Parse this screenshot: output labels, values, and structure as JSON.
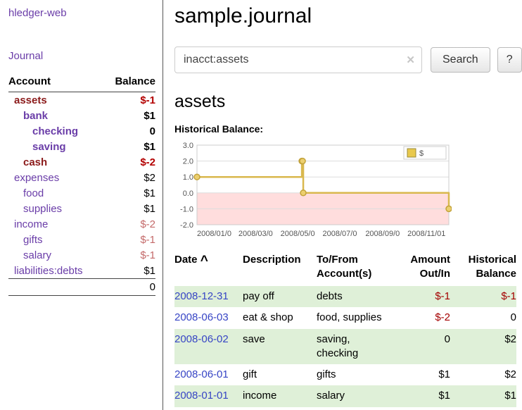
{
  "app": {
    "title": "hledger-web"
  },
  "sidebar": {
    "journal_label": "Journal",
    "accounts": {
      "header_account": "Account",
      "header_balance": "Balance",
      "rows": [
        {
          "name": "assets",
          "balance": "$-1"
        },
        {
          "name": "bank",
          "balance": "$1"
        },
        {
          "name": "checking",
          "balance": "0"
        },
        {
          "name": "saving",
          "balance": "$1"
        },
        {
          "name": "cash",
          "balance": "$-2"
        },
        {
          "name": "expenses",
          "balance": "$2"
        },
        {
          "name": "food",
          "balance": "$1"
        },
        {
          "name": "supplies",
          "balance": "$1"
        },
        {
          "name": "income",
          "balance": "$-2"
        },
        {
          "name": "gifts",
          "balance": "$-1"
        },
        {
          "name": "salary",
          "balance": "$-1"
        },
        {
          "name": "liabilities:debts",
          "balance": "$1"
        }
      ],
      "total": "0"
    }
  },
  "main": {
    "title": "sample.journal",
    "search": {
      "value": "inacct:assets",
      "clear_icon": "✕",
      "button_label": "Search",
      "help_label": "?"
    },
    "account_heading": "assets"
  },
  "chart_data": {
    "type": "line",
    "step": true,
    "title": "Historical Balance:",
    "series": [
      {
        "name": "$",
        "points": [
          [
            "2008-01-01",
            1
          ],
          [
            "2008-06-01",
            2
          ],
          [
            "2008-06-02",
            2
          ],
          [
            "2008-06-03",
            0
          ],
          [
            "2008-12-31",
            -1
          ]
        ]
      }
    ],
    "x_range": [
      "2008-01-01",
      "2008-12-31"
    ],
    "ylim": [
      -2,
      3
    ],
    "y_ticks": [
      "3.0",
      "2.0",
      "1.0",
      "0.0",
      "-1.0",
      "-2.0"
    ],
    "x_ticks": [
      {
        "date": "2008-01-01",
        "label": "2008/01/0"
      },
      {
        "date": "2008-03-01",
        "label": "2008/03/0"
      },
      {
        "date": "2008-05-01",
        "label": "2008/05/0"
      },
      {
        "date": "2008-07-01",
        "label": "2008/07/0"
      },
      {
        "date": "2008-09-01",
        "label": "2008/09/0"
      },
      {
        "date": "2008-11-01",
        "label": "2008/11/01"
      }
    ],
    "legend_position": "top-right",
    "grid": true,
    "colors": {
      "line": "#d9b84e",
      "point_fill": "#eccf6f",
      "point_stroke": "#c2a23a",
      "negative_region": "#ffdddd",
      "grid": "#dddddd",
      "legend_square": "#e9c94d"
    }
  },
  "register": {
    "headers": {
      "date": "Date",
      "sort_icon": "^",
      "description": "Description",
      "account": "To/From Account(s)",
      "amount": "Amount Out/In",
      "balance": "Historical Balance"
    },
    "rows": [
      {
        "date": "2008-12-31",
        "description": "pay off",
        "account": "debts",
        "amount": "$-1",
        "balance": "$-1"
      },
      {
        "date": "2008-06-03",
        "description": "eat & shop",
        "account": "food, supplies",
        "amount": "$-2",
        "balance": "0"
      },
      {
        "date": "2008-06-02",
        "description": "save",
        "account": "saving, checking",
        "amount": "0",
        "balance": "$2"
      },
      {
        "date": "2008-06-01",
        "description": "gift",
        "account": "gifts",
        "amount": "$1",
        "balance": "$2"
      },
      {
        "date": "2008-01-01",
        "description": "income",
        "account": "salary",
        "amount": "$1",
        "balance": "$1"
      }
    ]
  }
}
